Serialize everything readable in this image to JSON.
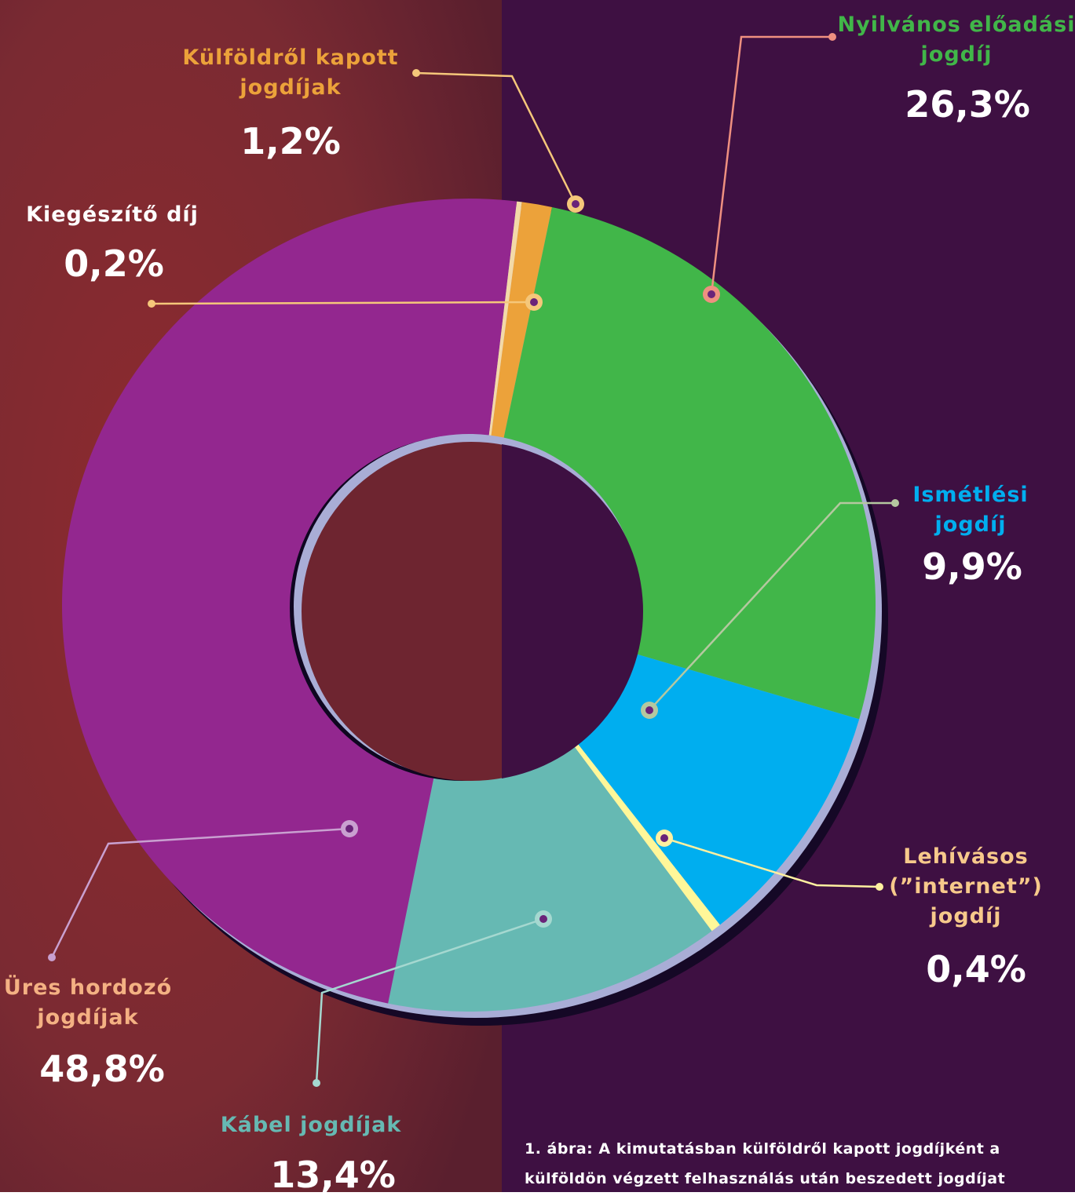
{
  "chart_data": {
    "type": "donut",
    "categories": [
      "Külföldről kapott jogdíjak",
      "Nyilvános előadási jogdíj",
      "Ismétlési jogdíj",
      "Lehívásos (”internet”) jogdíj",
      "Kábel jogdíjak",
      "Üres hordozó jogdíjak",
      "Kiegészítő díj"
    ],
    "values": [
      1.2,
      26.3,
      9.9,
      0.4,
      13.4,
      48.8,
      0.2
    ],
    "value_labels": [
      "1,2%",
      "26,3%",
      "9,9%",
      "0,4%",
      "13,4%",
      "48,8%",
      "0,2%"
    ],
    "colors": [
      "#eca23a",
      "#41b649",
      "#00aeef",
      "#fff799",
      "#66b9b3",
      "#93278f",
      "#f3d9a8"
    ],
    "caption": "1. ábra: A kimutatásban külföldről kapott jogdíjként a külföldön végzett felhasználás után beszedett jogdíjat"
  }
}
